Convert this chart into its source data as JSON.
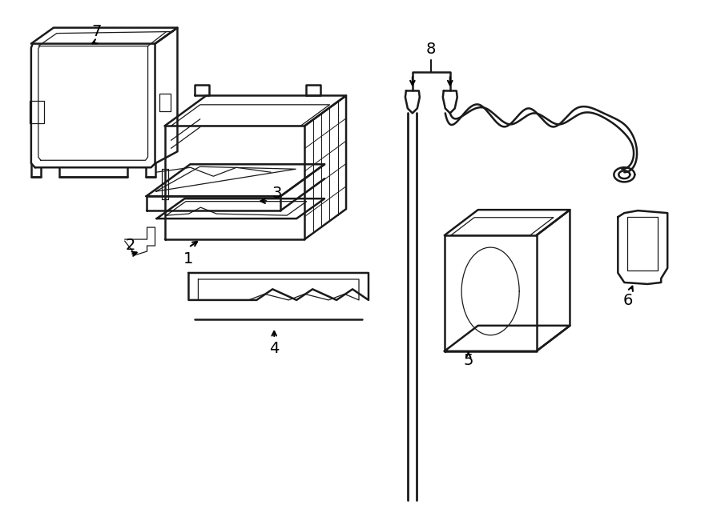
{
  "bg_color": "#ffffff",
  "lc": "#1a1a1a",
  "lw": 1.8,
  "lw_thin": 0.9,
  "fig_w": 9.0,
  "fig_h": 6.61,
  "xlim": [
    0,
    9.0
  ],
  "ylim": [
    0,
    6.61
  ]
}
